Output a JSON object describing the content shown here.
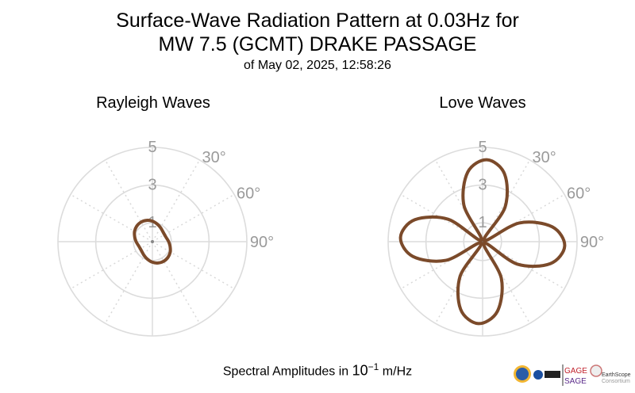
{
  "title": {
    "line1": "Surface-Wave Radiation Pattern at 0.03Hz for",
    "line2": "MW 7.5 (GCMT) DRAKE PASSAGE",
    "line3": "of May 02, 2025, 12:58:26"
  },
  "xlabel_prefix": "Spectral Amplitudes in ",
  "xlabel_base": "10",
  "xlabel_exp": "−1",
  "xlabel_unit": " m/Hz",
  "line_color": "#7b4a2a",
  "grid_color": "#dddddd",
  "chart_data": [
    {
      "type": "polar-line",
      "title": "Rayleigh Waves",
      "r_ticks": [
        "1",
        "3",
        "5"
      ],
      "angle_ticks": [
        "30°",
        "60°",
        "90°"
      ],
      "rlim": [
        0,
        5
      ],
      "grid": true,
      "azimuth_deg": [
        0,
        15,
        30,
        45,
        60,
        75,
        90,
        105,
        120,
        135,
        150,
        165,
        180,
        195,
        210,
        225,
        240,
        255,
        270,
        285,
        300,
        315,
        330,
        345
      ],
      "amplitude": [
        1.09,
        0.97,
        0.86,
        0.77,
        0.74,
        0.77,
        0.86,
        0.97,
        1.09,
        1.17,
        1.2,
        1.17,
        1.09,
        0.97,
        0.86,
        0.77,
        0.74,
        0.77,
        0.86,
        0.97,
        1.09,
        1.17,
        1.2,
        1.17
      ]
    },
    {
      "type": "polar-line",
      "title": "Love Waves",
      "r_ticks": [
        "1",
        "3",
        "5"
      ],
      "angle_ticks": [
        "30°",
        "60°",
        "90°"
      ],
      "rlim": [
        0,
        5
      ],
      "grid": true,
      "azimuth_deg": [
        3,
        18,
        33,
        48,
        63,
        78,
        93,
        108,
        123,
        138,
        153,
        168,
        183,
        198,
        213,
        228,
        243,
        258,
        273,
        288,
        303,
        318,
        333,
        348
      ],
      "amplitude": [
        4.35,
        3.77,
        2.18,
        0.1,
        2.18,
        3.77,
        4.35,
        3.77,
        2.18,
        0.1,
        2.18,
        3.77,
        4.35,
        3.77,
        2.18,
        0.1,
        2.18,
        3.77,
        4.35,
        3.77,
        2.18,
        0.1,
        2.18,
        3.77
      ]
    }
  ],
  "logos": {
    "gage": "GAGE",
    "sage": "SAGE",
    "earthscope": "EarthScope",
    "consortium": "Consortium",
    "nsf": "NSF",
    "usgs": "USGS"
  }
}
